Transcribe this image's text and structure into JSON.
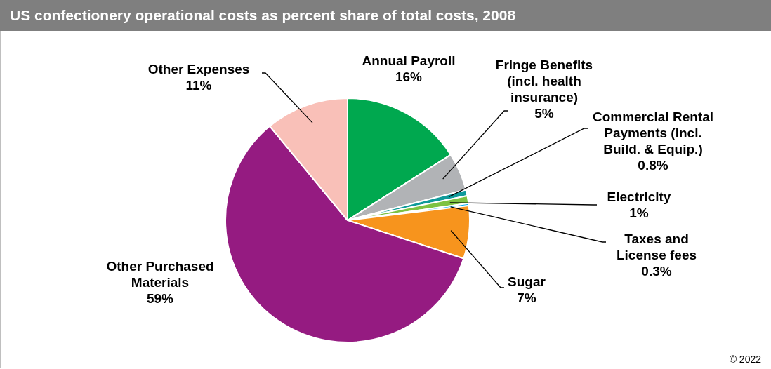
{
  "chart_data": {
    "type": "pie",
    "title": "US confectionery operational costs as percent share of total costs, 2008",
    "categories": [
      "Annual Payroll",
      "Fringe Benefits (incl. health insurance)",
      "Commercial Rental Payments (incl. Build. & Equip.)",
      "Electricity",
      "Taxes and License fees",
      "Sugar",
      "Other Purchased Materials",
      "Other Expenses"
    ],
    "values": [
      16,
      5,
      0.8,
      1,
      0.3,
      7,
      59,
      11
    ],
    "value_labels": [
      "16%",
      "5%",
      "0.8%",
      "1%",
      "0.3%",
      "7%",
      "59%",
      "11%"
    ],
    "colors": [
      "#00a84f",
      "#b1b3b6",
      "#0f9a9a",
      "#7dc242",
      "#00aeef",
      "#f7941d",
      "#951b81",
      "#f9c0b8"
    ],
    "legend": false,
    "annotations": [
      "© 2022"
    ]
  }
}
